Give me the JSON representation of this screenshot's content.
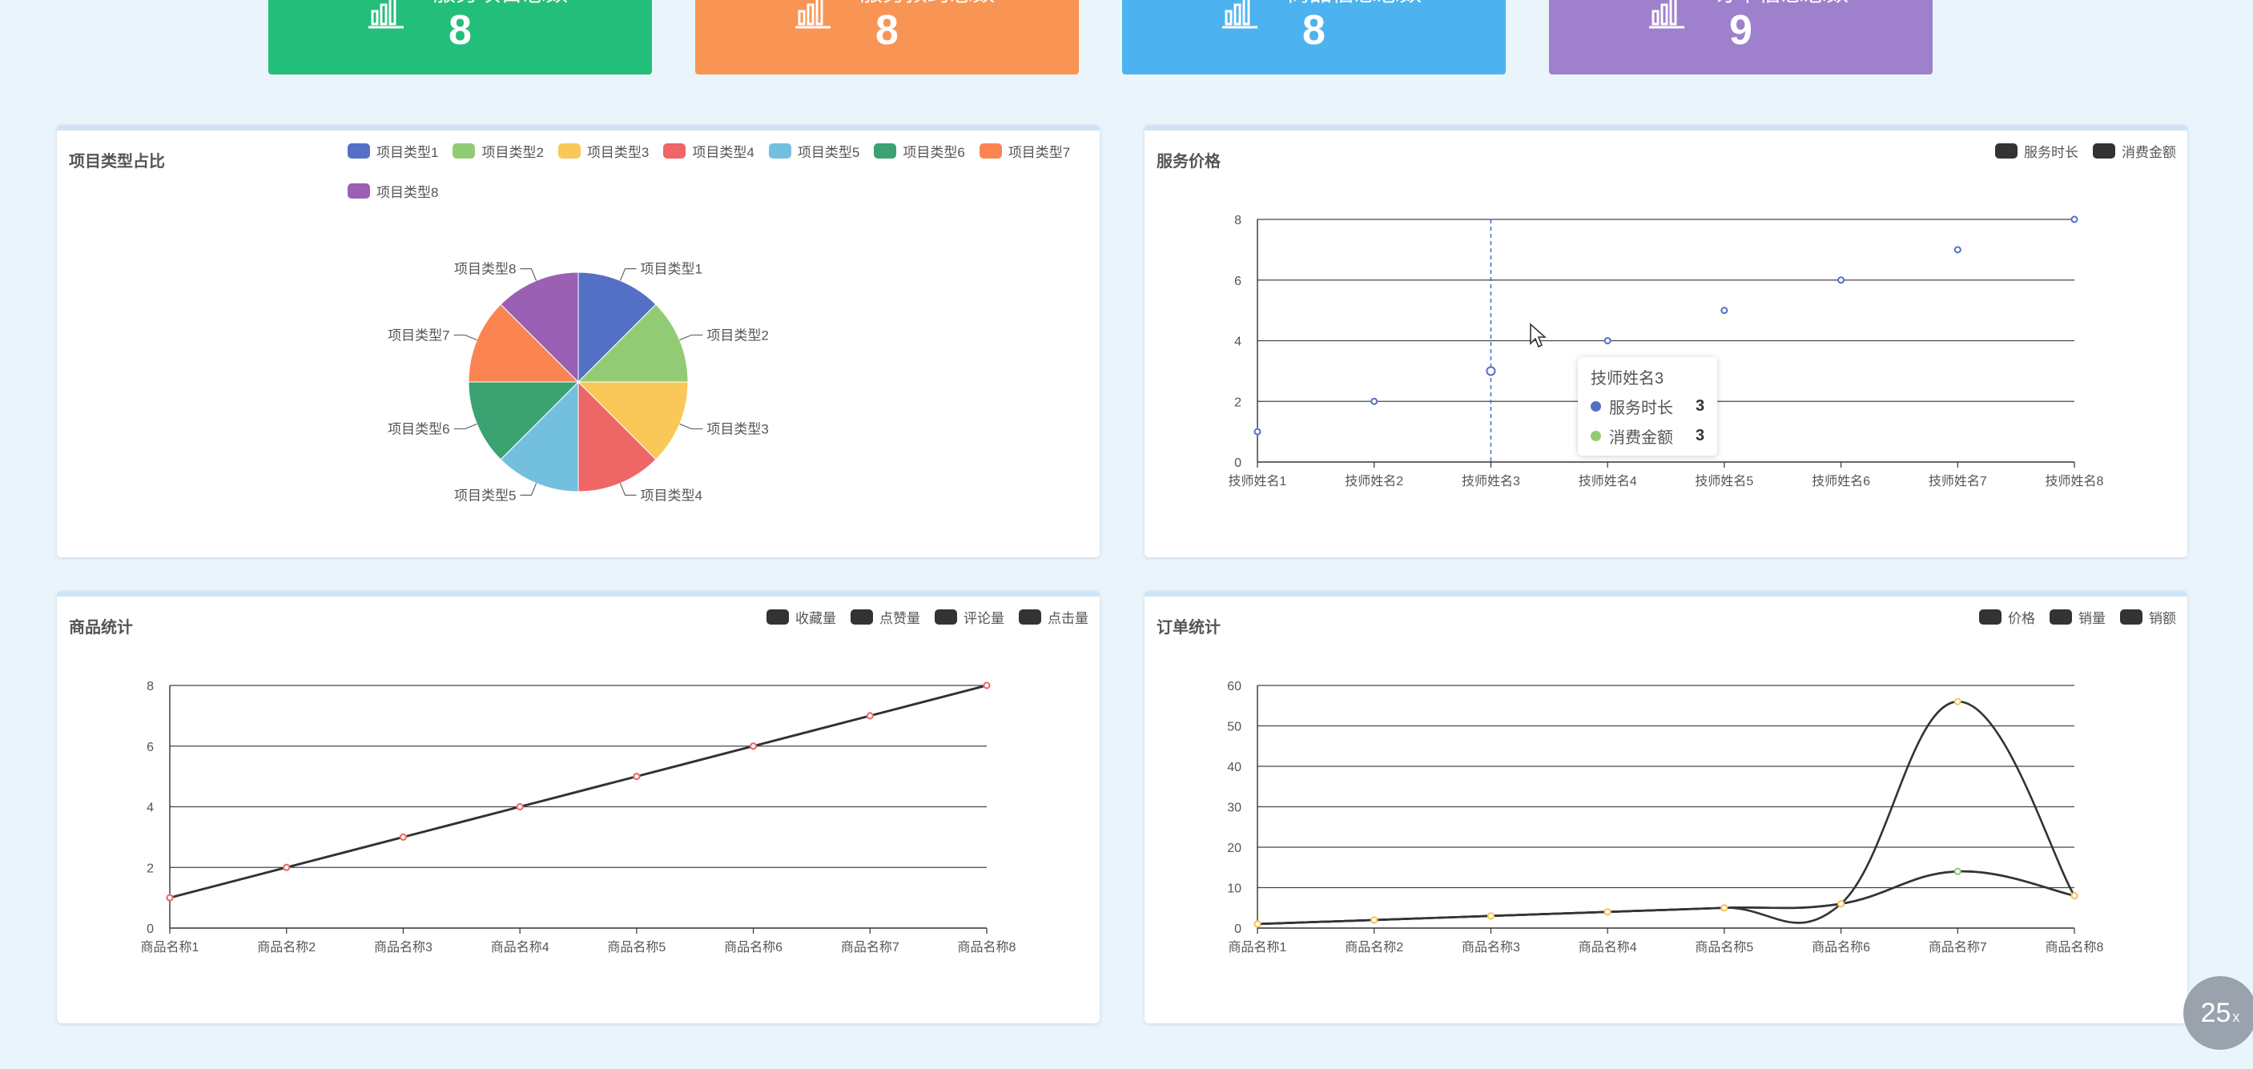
{
  "stats": [
    {
      "title": "服务项目总数",
      "value": "8",
      "color": "#23be7a",
      "icon": "bar-chart-icon"
    },
    {
      "title": "服务预约总数",
      "value": "8",
      "color": "#f99554",
      "icon": "bar-chart-icon"
    },
    {
      "title": "商品信息总数",
      "value": "8",
      "color": "#4cb3f0",
      "icon": "bar-chart-icon"
    },
    {
      "title": "订单信息总数",
      "value": "9",
      "color": "#9f80cc",
      "icon": "bar-chart-icon"
    }
  ],
  "pie_panel": {
    "title": "项目类型占比",
    "legend": [
      {
        "label": "项目类型1",
        "color": "#5470c6"
      },
      {
        "label": "项目类型2",
        "color": "#91cc75"
      },
      {
        "label": "项目类型3",
        "color": "#fac858"
      },
      {
        "label": "项目类型4",
        "color": "#ee6666"
      },
      {
        "label": "项目类型5",
        "color": "#73c0de"
      },
      {
        "label": "项目类型6",
        "color": "#3ba272"
      },
      {
        "label": "项目类型7",
        "color": "#fc8452"
      },
      {
        "label": "项目类型8",
        "color": "#9a60b4"
      }
    ]
  },
  "service_panel": {
    "title": "服务价格",
    "legend": [
      {
        "label": "服务时长",
        "color": "#333333"
      },
      {
        "label": "消费金额",
        "color": "#333333"
      }
    ],
    "tooltip": {
      "title": "技师姓名3",
      "rows": [
        {
          "label": "服务时长",
          "value": "3",
          "color": "#5470c6"
        },
        {
          "label": "消费金额",
          "value": "3",
          "color": "#91cc75"
        }
      ]
    }
  },
  "goods_panel": {
    "title": "商品统计",
    "legend": [
      {
        "label": "收藏量",
        "color": "#333333"
      },
      {
        "label": "点赞量",
        "color": "#333333"
      },
      {
        "label": "评论量",
        "color": "#333333"
      },
      {
        "label": "点击量",
        "color": "#333333"
      }
    ]
  },
  "order_panel": {
    "title": "订单统计",
    "legend": [
      {
        "label": "价格",
        "color": "#333333"
      },
      {
        "label": "销量",
        "color": "#333333"
      },
      {
        "label": "销额",
        "color": "#333333"
      }
    ]
  },
  "corner_button": {
    "label": "25",
    "suffix": "x"
  },
  "chart_data": [
    {
      "type": "pie",
      "title": "项目类型占比",
      "categories": [
        "项目类型1",
        "项目类型2",
        "项目类型3",
        "项目类型4",
        "项目类型5",
        "项目类型6",
        "项目类型7",
        "项目类型8"
      ],
      "values": [
        1,
        1,
        1,
        1,
        1,
        1,
        1,
        1
      ],
      "legend": "top-right"
    },
    {
      "type": "scatter",
      "title": "服务价格",
      "categories": [
        "技师姓名1",
        "技师姓名2",
        "技师姓名3",
        "技师姓名4",
        "技师姓名5",
        "技师姓名6",
        "技师姓名7",
        "技师姓名8"
      ],
      "series": [
        {
          "name": "服务时长",
          "values": [
            1,
            2,
            3,
            4,
            5,
            6,
            7,
            8
          ]
        },
        {
          "name": "消费金额",
          "values": [
            1,
            2,
            3,
            4,
            5,
            6,
            7,
            8
          ]
        }
      ],
      "ylim": [
        0,
        8
      ],
      "yticks": [
        0,
        2,
        4,
        6,
        8
      ],
      "grid": true,
      "legend": "top-right"
    },
    {
      "type": "line",
      "title": "商品统计",
      "categories": [
        "商品名称1",
        "商品名称2",
        "商品名称3",
        "商品名称4",
        "商品名称5",
        "商品名称6",
        "商品名称7",
        "商品名称8"
      ],
      "series": [
        {
          "name": "收藏量",
          "values": [
            1,
            2,
            3,
            4,
            5,
            6,
            7,
            8
          ]
        },
        {
          "name": "点赞量",
          "values": [
            1,
            2,
            3,
            4,
            5,
            6,
            7,
            8
          ]
        },
        {
          "name": "评论量",
          "values": [
            1,
            2,
            3,
            4,
            5,
            6,
            7,
            8
          ]
        },
        {
          "name": "点击量",
          "values": [
            1,
            2,
            3,
            4,
            5,
            6,
            7,
            8
          ]
        }
      ],
      "ylim": [
        0,
        8
      ],
      "yticks": [
        0,
        2,
        4,
        6,
        8
      ],
      "grid": true,
      "legend": "top-right"
    },
    {
      "type": "line",
      "title": "订单统计",
      "categories": [
        "商品名称1",
        "商品名称2",
        "商品名称3",
        "商品名称4",
        "商品名称5",
        "商品名称6",
        "商品名称7",
        "商品名称8"
      ],
      "series": [
        {
          "name": "价格",
          "values": [
            1,
            2,
            3,
            4,
            5,
            6,
            14,
            8
          ]
        },
        {
          "name": "销量",
          "values": [
            1,
            2,
            3,
            4,
            5,
            6,
            14,
            8
          ]
        },
        {
          "name": "销额",
          "values": [
            1,
            2,
            3,
            4,
            5,
            6,
            56,
            8
          ]
        }
      ],
      "ylim": [
        0,
        60
      ],
      "yticks": [
        0,
        10,
        20,
        30,
        40,
        50,
        60
      ],
      "grid": true,
      "legend": "top-right"
    }
  ]
}
